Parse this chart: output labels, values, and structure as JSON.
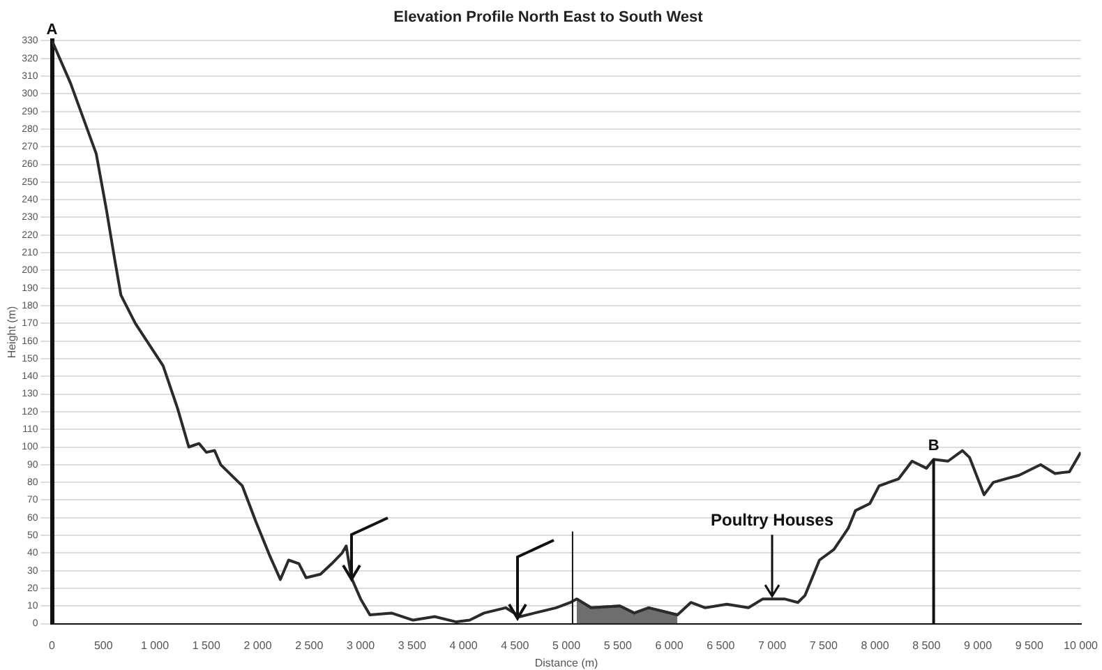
{
  "chart_data": {
    "type": "line",
    "title": "Elevation Profile North East to South West",
    "xlabel": "Distance (m)",
    "ylabel": "Height (m)",
    "series": [
      {
        "color": "#2b2b2b",
        "x": [
          0,
          180,
          430,
          530,
          610,
          670,
          810,
          1080,
          1220,
          1330,
          1430,
          1500,
          1580,
          1640,
          1850,
          1980,
          2120,
          2220,
          2300,
          2400,
          2470,
          2610,
          2720,
          2820,
          2860,
          2910,
          3000,
          3090,
          3300,
          3510,
          3720,
          3930,
          4060,
          4200,
          4410,
          4550,
          4690,
          4900,
          5040,
          5100,
          5240,
          5520,
          5660,
          5800,
          6080,
          6210,
          6350,
          6560,
          6770,
          6910,
          7120,
          7250,
          7320,
          7390,
          7460,
          7600,
          7740,
          7810,
          7950,
          8040,
          8230,
          8360,
          8500,
          8570,
          8710,
          8850,
          8920,
          9060,
          9150,
          9270,
          9400,
          9610,
          9750,
          9890,
          10000
        ],
        "values": [
          330,
          306,
          266,
          234,
          206,
          186,
          170,
          146,
          122,
          100,
          102,
          97,
          98,
          90,
          78,
          58,
          38,
          25,
          36,
          34,
          26,
          28,
          34,
          40,
          44,
          26,
          14,
          5,
          6,
          2,
          4,
          1,
          2,
          6,
          9,
          4,
          6,
          9,
          12,
          14,
          9,
          10,
          6,
          9,
          5,
          12,
          9,
          11,
          9,
          14,
          14,
          12,
          16,
          26,
          36,
          42,
          54,
          64,
          68,
          78,
          82,
          92,
          88,
          93,
          92,
          98,
          94,
          73,
          80,
          82,
          84,
          90,
          85,
          86,
          97
        ]
      },
      {
        "type": "area",
        "color": "#6e6e6e",
        "x": [
          5100,
          5240,
          5520,
          5660,
          5800,
          6080
        ],
        "values": [
          14,
          9,
          10,
          6,
          9,
          5
        ]
      }
    ],
    "xlim": [
      0,
      10000
    ],
    "xticks": [
      0,
      500,
      {
        "value": 1000,
        "label": "1 000"
      },
      {
        "value": 1500,
        "label": "1 500"
      },
      {
        "value": 2000,
        "label": "2 000"
      },
      {
        "value": 2500,
        "label": "2 500"
      },
      {
        "value": 3000,
        "label": "3 000"
      },
      {
        "value": 3500,
        "label": "3 500"
      },
      {
        "value": 4000,
        "label": "4 000"
      },
      {
        "value": 4500,
        "label": "4 500"
      },
      {
        "value": 5000,
        "label": "5 000"
      },
      {
        "value": 5500,
        "label": "5 500"
      },
      {
        "value": 6000,
        "label": "6 000"
      },
      {
        "value": 6500,
        "label": "6 500"
      },
      {
        "value": 7000,
        "label": "7 000"
      },
      {
        "value": 7500,
        "label": "7 500"
      },
      {
        "value": 8000,
        "label": "8 000"
      },
      {
        "value": 8500,
        "label": "8 500"
      },
      {
        "value": 9000,
        "label": "9 000"
      },
      {
        "value": 9500,
        "label": "9 500"
      },
      {
        "value": 10000,
        "label": "10 000"
      }
    ],
    "ylim": [
      0,
      330
    ],
    "yticks": [
      0,
      10,
      20,
      30,
      40,
      50,
      60,
      70,
      80,
      90,
      100,
      110,
      120,
      130,
      140,
      150,
      160,
      170,
      180,
      190,
      200,
      210,
      220,
      230,
      240,
      250,
      260,
      270,
      280,
      290,
      300,
      310,
      320,
      330
    ],
    "ref_lines": [
      {
        "axis": "x",
        "value": 8570,
        "label": "B"
      },
      {
        "axis": "x",
        "value": 5060,
        "label": null
      }
    ],
    "annotations": [
      {
        "text": "A",
        "x": 0,
        "y": 330
      },
      {
        "text": "Poultry Houses",
        "x": 7000,
        "y": 14
      }
    ],
    "grid": "y",
    "legend": false,
    "marker": "none",
    "line_style": "solid"
  }
}
